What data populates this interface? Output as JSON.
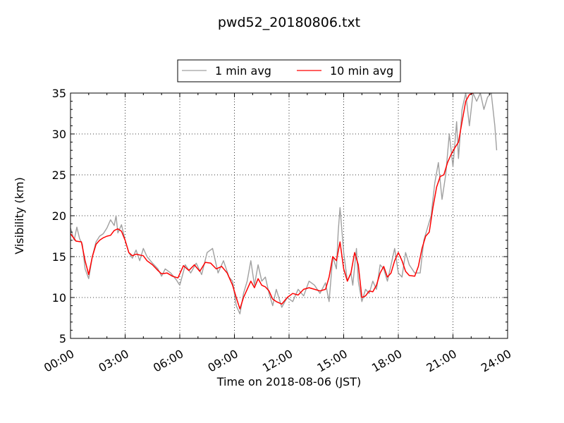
{
  "chart_data": {
    "type": "line",
    "title": "pwd52_20180806.txt",
    "xlabel": "Time on 2018-08-06 (JST)",
    "ylabel": "Visibility (km)",
    "xlim": [
      0,
      24
    ],
    "ylim": [
      5,
      35
    ],
    "xticks": [
      0,
      3,
      6,
      9,
      12,
      15,
      18,
      21,
      24
    ],
    "xtick_labels": [
      "00:00",
      "03:00",
      "06:00",
      "09:00",
      "12:00",
      "15:00",
      "18:00",
      "21:00",
      "24:00"
    ],
    "yticks": [
      5,
      10,
      15,
      20,
      25,
      30,
      35
    ],
    "ytick_labels": [
      "5",
      "10",
      "15",
      "20",
      "25",
      "30",
      "35"
    ],
    "grid": true,
    "legend_position": "top-center",
    "series": [
      {
        "name": "1 min avg",
        "color": "#a0a0a0",
        "x": [
          0,
          0.2,
          0.35,
          0.5,
          0.65,
          0.8,
          1.0,
          1.2,
          1.4,
          1.6,
          1.8,
          2.0,
          2.2,
          2.4,
          2.5,
          2.6,
          2.8,
          3.0,
          3.2,
          3.4,
          3.6,
          3.8,
          4.0,
          4.2,
          4.5,
          4.8,
          5.0,
          5.2,
          5.5,
          5.8,
          6.0,
          6.3,
          6.6,
          6.9,
          7.2,
          7.5,
          7.8,
          8.1,
          8.4,
          8.7,
          8.9,
          9.1,
          9.3,
          9.5,
          9.7,
          9.9,
          10.1,
          10.3,
          10.5,
          10.7,
          10.9,
          11.1,
          11.3,
          11.6,
          11.9,
          12.2,
          12.5,
          12.8,
          13.1,
          13.4,
          13.7,
          14.0,
          14.2,
          14.4,
          14.6,
          14.7,
          14.8,
          15.0,
          15.2,
          15.4,
          15.5,
          15.7,
          15.8,
          16.0,
          16.2,
          16.4,
          16.6,
          16.8,
          17.0,
          17.2,
          17.4,
          17.6,
          17.8,
          18.0,
          18.2,
          18.4,
          18.6,
          18.9,
          19.2,
          19.4,
          19.6,
          19.8,
          20.0,
          20.2,
          20.4,
          20.6,
          20.8,
          21.0,
          21.2,
          21.3,
          21.5,
          21.7,
          21.9,
          22.1,
          22.3,
          22.5,
          22.7,
          22.9,
          23.1,
          23.3,
          23.4
        ],
        "y": [
          18.5,
          17.0,
          18.6,
          17.2,
          16.5,
          13.5,
          12.3,
          15.0,
          16.8,
          17.5,
          17.8,
          18.5,
          19.5,
          18.8,
          20.0,
          17.9,
          18.9,
          17.0,
          15.5,
          14.8,
          15.8,
          14.5,
          16.0,
          15.0,
          14.2,
          13.5,
          12.6,
          13.5,
          13.0,
          12.2,
          11.5,
          14.0,
          13.0,
          14.2,
          12.8,
          15.5,
          16.0,
          13.0,
          14.5,
          12.5,
          12.0,
          9.0,
          8.0,
          10.5,
          12.0,
          14.5,
          11.5,
          14.0,
          12.0,
          12.5,
          10.5,
          9.0,
          11.0,
          8.8,
          10.0,
          9.5,
          11.0,
          10.2,
          12.0,
          11.5,
          10.5,
          11.8,
          9.5,
          15.0,
          13.5,
          18.0,
          21.0,
          15.5,
          12.0,
          13.0,
          11.5,
          16.0,
          12.0,
          9.5,
          11.0,
          10.5,
          12.0,
          11.0,
          14.0,
          13.5,
          12.0,
          14.0,
          16.0,
          13.0,
          12.5,
          15.5,
          14.0,
          13.0,
          13.0,
          17.0,
          18.5,
          20.0,
          24.0,
          26.5,
          22.0,
          25.0,
          30.0,
          26.0,
          31.5,
          27.0,
          33.0,
          35.0,
          31.0,
          35.0,
          34.0,
          35.0,
          33.0,
          34.5,
          35.0,
          31.0,
          28.0
        ]
      },
      {
        "name": "10 min avg",
        "color": "#ff0000",
        "x": [
          0,
          0.3,
          0.6,
          0.8,
          1.0,
          1.2,
          1.4,
          1.6,
          1.8,
          2.0,
          2.2,
          2.4,
          2.6,
          2.8,
          3.0,
          3.2,
          3.4,
          3.6,
          3.8,
          4.0,
          4.2,
          4.5,
          4.8,
          5.0,
          5.3,
          5.6,
          5.9,
          6.2,
          6.5,
          6.8,
          7.1,
          7.4,
          7.7,
          8.0,
          8.3,
          8.6,
          8.9,
          9.1,
          9.3,
          9.5,
          9.7,
          9.9,
          10.1,
          10.3,
          10.5,
          10.7,
          10.9,
          11.1,
          11.3,
          11.6,
          11.9,
          12.2,
          12.5,
          12.8,
          13.1,
          13.4,
          13.7,
          14.0,
          14.2,
          14.4,
          14.6,
          14.8,
          15.0,
          15.2,
          15.4,
          15.6,
          15.8,
          16.0,
          16.2,
          16.4,
          16.6,
          16.8,
          17.0,
          17.2,
          17.4,
          17.6,
          17.8,
          18.0,
          18.2,
          18.4,
          18.6,
          18.9,
          19.1,
          19.3,
          19.5,
          19.7,
          19.9,
          20.1,
          20.3,
          20.5,
          20.7,
          20.9,
          21.1,
          21.3,
          21.5,
          21.7,
          21.9,
          22.1
        ],
        "y": [
          17.8,
          16.9,
          16.8,
          14.5,
          12.8,
          15.0,
          16.5,
          17.0,
          17.3,
          17.5,
          17.6,
          18.2,
          18.4,
          18.1,
          17.0,
          15.5,
          15.1,
          15.3,
          15.2,
          15.1,
          14.5,
          14.0,
          13.3,
          12.9,
          13.0,
          12.6,
          12.4,
          13.9,
          13.3,
          14.0,
          13.2,
          14.3,
          14.2,
          13.5,
          13.8,
          13.0,
          11.5,
          10.0,
          8.6,
          10.0,
          11.0,
          12.0,
          11.2,
          12.3,
          11.5,
          11.3,
          10.8,
          9.8,
          9.5,
          9.2,
          10.0,
          10.5,
          10.3,
          11.0,
          11.2,
          11.0,
          10.8,
          11.0,
          12.5,
          15.0,
          14.5,
          16.8,
          13.5,
          12.0,
          13.0,
          15.5,
          14.0,
          10.0,
          10.2,
          10.8,
          10.7,
          11.5,
          13.0,
          13.8,
          12.5,
          13.0,
          14.5,
          15.5,
          14.5,
          13.2,
          12.7,
          12.6,
          13.8,
          16.0,
          17.5,
          18.0,
          21.0,
          23.5,
          24.8,
          25.0,
          26.5,
          27.5,
          28.3,
          29.0,
          31.5,
          34.0,
          34.8,
          35.0
        ]
      }
    ]
  }
}
